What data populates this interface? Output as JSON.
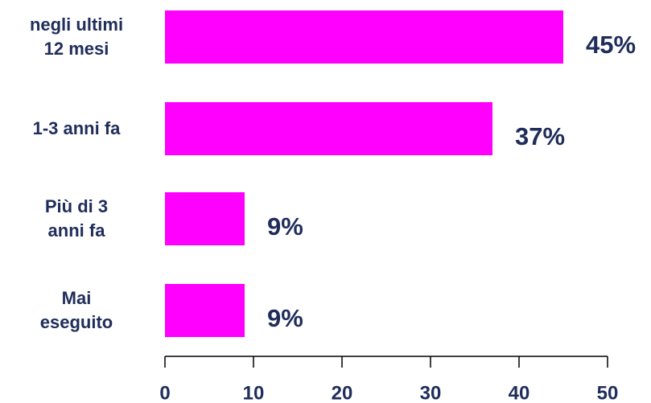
{
  "chart_data": {
    "type": "bar",
    "orientation": "horizontal",
    "categories": [
      "negli ultimi\n12 mesi",
      "1-3 anni fa",
      "Più di 3\nanni fa",
      "Mai\neseguito"
    ],
    "values": [
      45,
      37,
      9,
      9
    ],
    "value_labels": [
      "45%",
      "37%",
      "9%",
      "9%"
    ],
    "color": "#ff00ff",
    "xlim": [
      0,
      50
    ],
    "xticks": [
      0,
      10,
      20,
      30,
      40,
      50
    ],
    "grid": false
  }
}
